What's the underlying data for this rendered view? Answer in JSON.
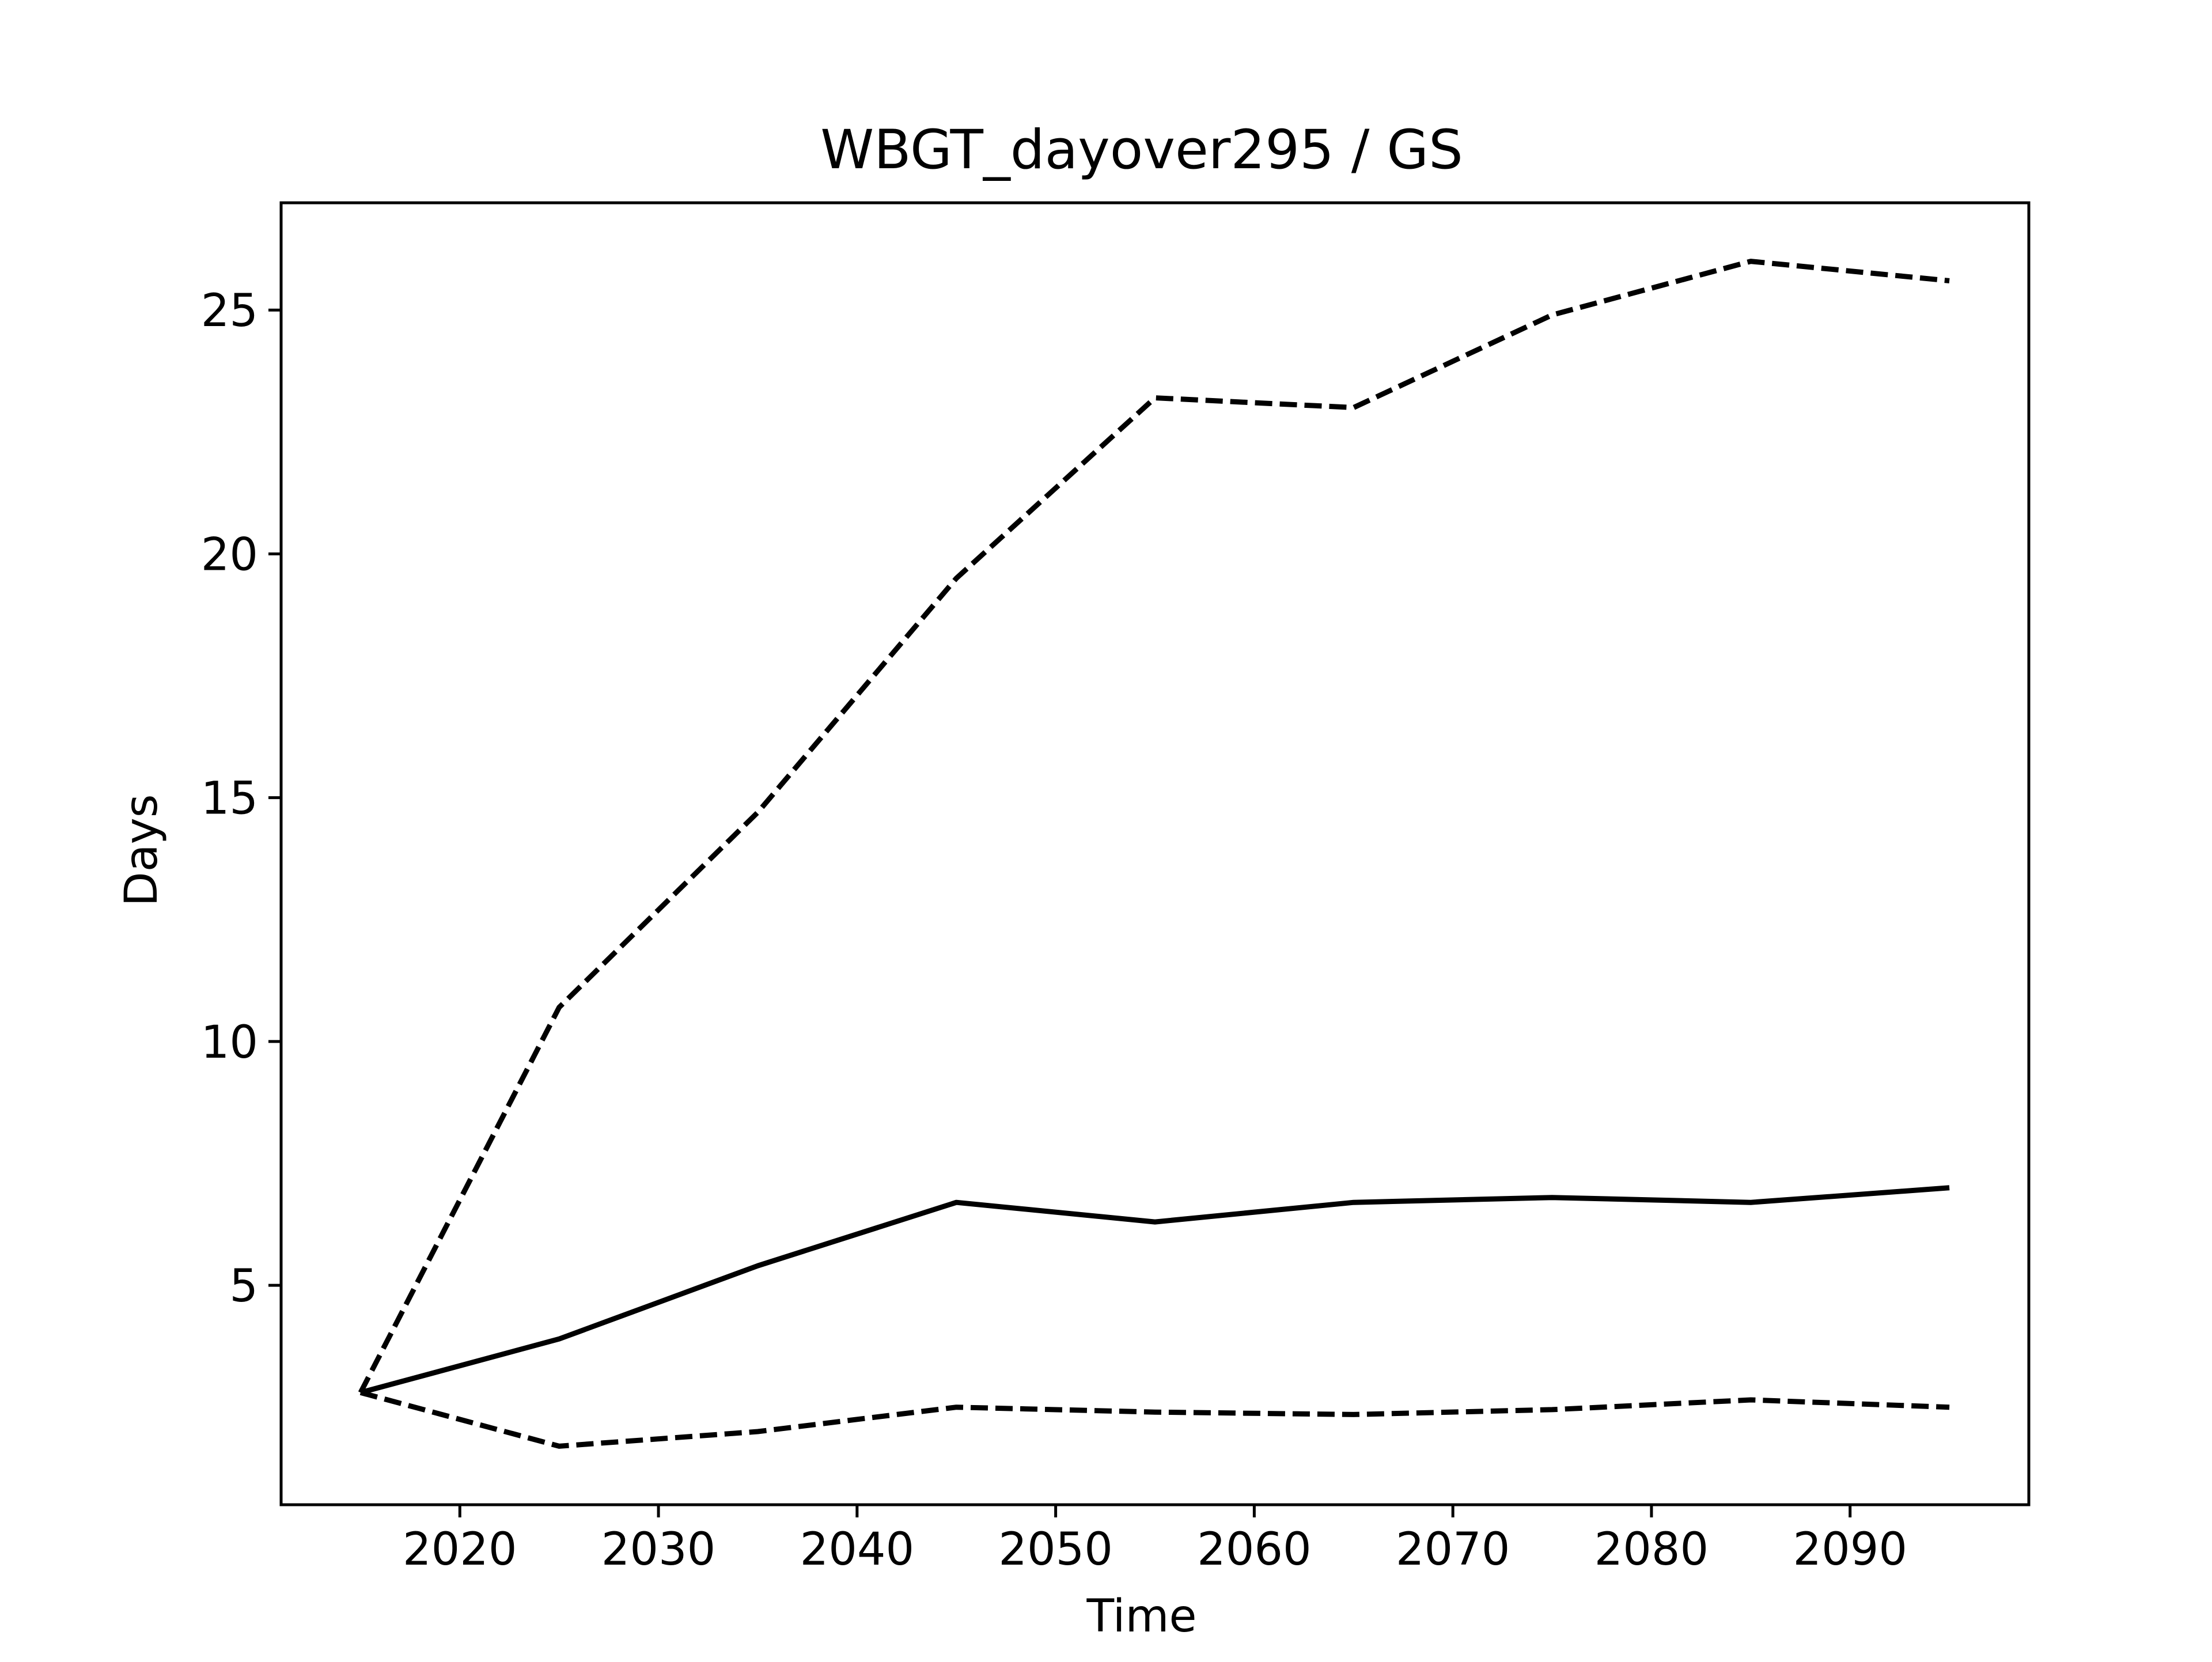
{
  "chart_data": {
    "type": "line",
    "title": "WBGT_dayover295 / GS",
    "xlabel": "Time",
    "ylabel": "Days",
    "xlim": [
      2011,
      2099
    ],
    "ylim": [
      0.5,
      27.2
    ],
    "xticks": [
      2020,
      2030,
      2040,
      2050,
      2060,
      2070,
      2080,
      2090
    ],
    "yticks": [
      5,
      10,
      15,
      20,
      25
    ],
    "grid": false,
    "x": [
      2015,
      2025,
      2035,
      2045,
      2055,
      2065,
      2075,
      2085,
      2095
    ],
    "series": [
      {
        "style": "solid",
        "color": "#000000",
        "values": [
          2.8,
          3.9,
          5.4,
          6.7,
          6.3,
          6.7,
          6.8,
          6.7,
          7.0
        ]
      },
      {
        "style": "dashed",
        "color": "#000000",
        "values": [
          2.8,
          10.7,
          14.7,
          19.5,
          23.2,
          23.0,
          24.9,
          26.0,
          25.6
        ]
      },
      {
        "style": "dashed",
        "color": "#000000",
        "values": [
          2.8,
          1.7,
          2.0,
          2.5,
          2.4,
          2.35,
          2.45,
          2.65,
          2.5
        ]
      }
    ]
  }
}
